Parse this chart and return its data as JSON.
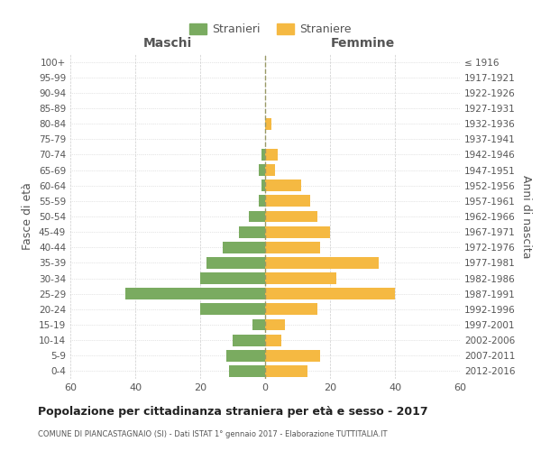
{
  "age_groups": [
    "100+",
    "95-99",
    "90-94",
    "85-89",
    "80-84",
    "75-79",
    "70-74",
    "65-69",
    "60-64",
    "55-59",
    "50-54",
    "45-49",
    "40-44",
    "35-39",
    "30-34",
    "25-29",
    "20-24",
    "15-19",
    "10-14",
    "5-9",
    "0-4"
  ],
  "birth_years": [
    "≤ 1916",
    "1917-1921",
    "1922-1926",
    "1927-1931",
    "1932-1936",
    "1937-1941",
    "1942-1946",
    "1947-1951",
    "1952-1956",
    "1957-1961",
    "1962-1966",
    "1967-1971",
    "1972-1976",
    "1977-1981",
    "1982-1986",
    "1987-1991",
    "1992-1996",
    "1997-2001",
    "2002-2006",
    "2007-2011",
    "2012-2016"
  ],
  "males": [
    0,
    0,
    0,
    0,
    0,
    0,
    1,
    2,
    1,
    2,
    5,
    8,
    13,
    18,
    20,
    43,
    20,
    4,
    10,
    12,
    11
  ],
  "females": [
    0,
    0,
    0,
    0,
    2,
    0,
    4,
    3,
    11,
    14,
    16,
    20,
    17,
    35,
    22,
    40,
    16,
    6,
    5,
    17,
    13
  ],
  "male_color": "#7aab60",
  "female_color": "#f5b942",
  "bar_height": 0.75,
  "xlim": [
    -60,
    60
  ],
  "xticks": [
    -60,
    -40,
    -20,
    0,
    20,
    40,
    60
  ],
  "xticklabels": [
    "60",
    "40",
    "20",
    "0",
    "20",
    "40",
    "60"
  ],
  "title": "Popolazione per cittadinanza straniera per età e sesso - 2017",
  "subtitle": "COMUNE DI PIANCASTAGNAIO (SI) - Dati ISTAT 1° gennaio 2017 - Elaborazione TUTTITALIA.IT",
  "ylabel_left": "Fasce di età",
  "ylabel_right": "Anni di nascita",
  "xlabel_left": "Maschi",
  "xlabel_right": "Femmine",
  "legend_stranieri": "Stranieri",
  "legend_straniere": "Straniere",
  "bg_color": "#ffffff",
  "grid_color": "#cccccc",
  "text_color": "#555555",
  "title_color": "#222222"
}
